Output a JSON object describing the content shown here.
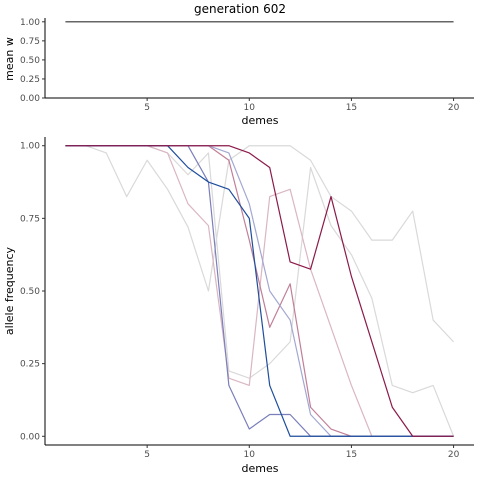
{
  "page_title": "generation 602",
  "chart_data": [
    {
      "type": "line",
      "ylabel": "mean w",
      "xlabel": "demes",
      "xlim": [
        0,
        21
      ],
      "ylim": [
        0,
        1.05
      ],
      "x_ticks": [
        5,
        10,
        15,
        20
      ],
      "y_ticks": [
        "0.00",
        "0.25",
        "0.50",
        "0.75",
        "1.00"
      ],
      "grid": false,
      "series": [
        {
          "color": "#333333",
          "x": [
            1,
            20
          ],
          "values": [
            1.0,
            1.0
          ]
        }
      ]
    },
    {
      "type": "line",
      "ylabel": "allele frequency",
      "xlabel": "demes",
      "xlim": [
        0,
        21
      ],
      "ylim": [
        -0.03,
        1.03
      ],
      "x_ticks": [
        5,
        10,
        15,
        20
      ],
      "y_ticks": [
        "0.00",
        "0.25",
        "0.50",
        "0.75",
        "1.00"
      ],
      "grid": false,
      "legend": "none",
      "series": [
        {
          "color": "#d9d9d9",
          "x": [
            1,
            2,
            3,
            4,
            5,
            6,
            7,
            8,
            9,
            10,
            11,
            12,
            13,
            14,
            15,
            16,
            17,
            18,
            19,
            20
          ],
          "values": [
            1.0,
            1.0,
            0.975,
            0.825,
            0.95,
            0.85,
            0.72,
            0.5,
            0.95,
            1.0,
            1.0,
            1.0,
            0.95,
            0.825,
            0.775,
            0.675,
            0.675,
            0.775,
            0.4,
            0.325
          ]
        },
        {
          "color": "#d9d9d9",
          "x": [
            1,
            2,
            3,
            4,
            5,
            6,
            7,
            8,
            9,
            10,
            11,
            12,
            13,
            14,
            15,
            16,
            17,
            18,
            19,
            20
          ],
          "values": [
            1.0,
            1.0,
            1.0,
            1.0,
            1.0,
            0.975,
            0.9,
            0.975,
            0.225,
            0.2,
            0.25,
            0.325,
            0.925,
            0.725,
            0.625,
            0.475,
            0.175,
            0.15,
            0.175,
            0.0
          ]
        },
        {
          "color": "#dab6c3",
          "x": [
            1,
            2,
            3,
            4,
            5,
            6,
            7,
            8,
            9,
            10,
            11,
            12,
            13,
            14,
            15,
            16,
            17,
            18,
            19,
            20
          ],
          "values": [
            1.0,
            1.0,
            1.0,
            1.0,
            1.0,
            0.975,
            0.8,
            0.725,
            0.2,
            0.175,
            0.825,
            0.85,
            0.575,
            0.375,
            0.175,
            0.0,
            0.0,
            0.0,
            0.0,
            0.0
          ]
        },
        {
          "color": "#c07f98",
          "x": [
            1,
            2,
            3,
            4,
            5,
            6,
            7,
            8,
            9,
            10,
            11,
            12,
            13,
            14,
            15,
            16,
            17,
            18,
            19,
            20
          ],
          "values": [
            1.0,
            1.0,
            1.0,
            1.0,
            1.0,
            1.0,
            1.0,
            1.0,
            0.95,
            0.675,
            0.375,
            0.525,
            0.1,
            0.025,
            0.0,
            0.0,
            0.0,
            0.0,
            0.0,
            0.0
          ]
        },
        {
          "color": "#a3a8d2",
          "x": [
            1,
            2,
            3,
            4,
            5,
            6,
            7,
            8,
            9,
            10,
            11,
            12,
            13,
            14,
            15,
            16,
            17,
            18,
            19,
            20
          ],
          "values": [
            1.0,
            1.0,
            1.0,
            1.0,
            1.0,
            1.0,
            1.0,
            1.0,
            0.975,
            0.8,
            0.5,
            0.4,
            0.075,
            0.0,
            0.0,
            0.0,
            0.0,
            0.0,
            0.0,
            0.0
          ]
        },
        {
          "color": "#7b7fba",
          "x": [
            1,
            2,
            3,
            4,
            5,
            6,
            7,
            8,
            9,
            10,
            11,
            12,
            13,
            14,
            15,
            16,
            17,
            18,
            19,
            20
          ],
          "values": [
            1.0,
            1.0,
            1.0,
            1.0,
            1.0,
            1.0,
            1.0,
            0.875,
            0.175,
            0.025,
            0.075,
            0.075,
            0.0,
            0.0,
            0.0,
            0.0,
            0.0,
            0.0,
            0.0,
            0.0
          ]
        },
        {
          "color": "#1f4e9c",
          "x": [
            1,
            2,
            3,
            4,
            5,
            6,
            7,
            8,
            9,
            10,
            11,
            12,
            13,
            14,
            15,
            16,
            17,
            18,
            19,
            20
          ],
          "values": [
            1.0,
            1.0,
            1.0,
            1.0,
            1.0,
            1.0,
            0.925,
            0.875,
            0.85,
            0.75,
            0.175,
            0.0,
            0.0,
            0.0,
            0.0,
            0.0,
            0.0,
            0.0,
            0.0,
            0.0
          ]
        },
        {
          "color": "#8b1a4a",
          "x": [
            1,
            2,
            3,
            4,
            5,
            6,
            7,
            8,
            9,
            10,
            11,
            12,
            13,
            14,
            15,
            16,
            17,
            18,
            19,
            20
          ],
          "values": [
            1.0,
            1.0,
            1.0,
            1.0,
            1.0,
            1.0,
            1.0,
            1.0,
            1.0,
            0.975,
            0.925,
            0.6,
            0.575,
            0.825,
            0.55,
            0.325,
            0.1,
            0.0,
            0.0,
            0.0
          ]
        }
      ]
    }
  ]
}
